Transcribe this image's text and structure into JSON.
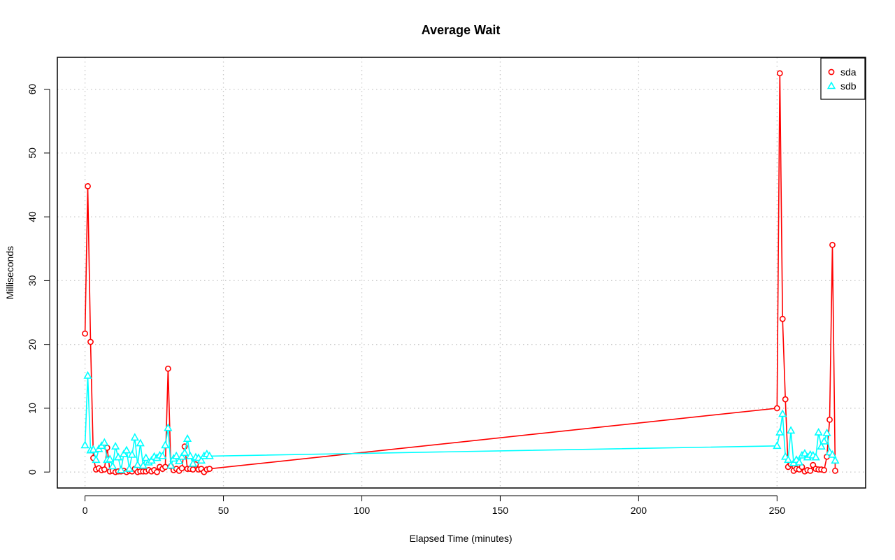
{
  "chart_data": {
    "type": "line",
    "title": "Average Wait",
    "xlabel": "Elapsed Time (minutes)",
    "ylabel": "Milliseconds",
    "xlim": [
      -10,
      282
    ],
    "ylim": [
      -2.5,
      65
    ],
    "xticks": [
      0,
      50,
      100,
      150,
      200,
      250
    ],
    "yticks": [
      0,
      10,
      20,
      30,
      40,
      50,
      60
    ],
    "grid": true,
    "legend_position": "top-right",
    "series": [
      {
        "name": "sda",
        "color": "#ff0000",
        "marker": "circle",
        "x": [
          0,
          1,
          2,
          3,
          4,
          5,
          6,
          7,
          8,
          9,
          10,
          11,
          12,
          13,
          14,
          15,
          16,
          17,
          18,
          19,
          20,
          21,
          22,
          23,
          24,
          25,
          26,
          27,
          28,
          29,
          30,
          31,
          32,
          33,
          34,
          35,
          36,
          37,
          38,
          39,
          40,
          41,
          42,
          43,
          44,
          45,
          250,
          251,
          252,
          253,
          254,
          255,
          256,
          257,
          258,
          259,
          260,
          261,
          262,
          263,
          264,
          265,
          266,
          267,
          268,
          269,
          270,
          271
        ],
        "y": [
          21.7,
          44.8,
          20.4,
          2.2,
          0.4,
          0.6,
          0.3,
          0.4,
          3.8,
          0.1,
          0.2,
          0.0,
          0.1,
          0.1,
          0.2,
          0.0,
          0.2,
          0.1,
          0.5,
          0.0,
          0.1,
          0.1,
          0.1,
          0.3,
          0.1,
          0.3,
          0.0,
          0.8,
          0.5,
          0.8,
          16.2,
          0.9,
          0.3,
          0.5,
          0.2,
          0.6,
          4.0,
          0.5,
          0.5,
          0.4,
          1.2,
          0.4,
          0.5,
          0.0,
          0.4,
          0.5,
          10.0,
          62.5,
          24.0,
          11.4,
          0.8,
          1.2,
          0.2,
          0.5,
          0.4,
          0.8,
          0.1,
          0.3,
          0.2,
          1.1,
          0.5,
          0.4,
          0.4,
          0.3,
          2.4,
          8.2,
          35.6,
          0.2
        ]
      },
      {
        "name": "sdb",
        "color": "#00ffff",
        "marker": "triangle",
        "x": [
          0,
          1,
          2,
          3,
          4,
          5,
          6,
          7,
          8,
          9,
          10,
          11,
          12,
          13,
          14,
          15,
          16,
          17,
          18,
          19,
          20,
          21,
          22,
          23,
          24,
          25,
          26,
          27,
          28,
          29,
          30,
          31,
          32,
          33,
          34,
          35,
          36,
          37,
          38,
          39,
          40,
          41,
          42,
          43,
          44,
          45,
          250,
          251,
          252,
          253,
          254,
          255,
          256,
          257,
          258,
          259,
          260,
          261,
          262,
          263,
          264,
          265,
          266,
          267,
          268,
          269,
          270,
          271
        ],
        "y": [
          4.2,
          15.1,
          3.4,
          3.5,
          1.9,
          3.6,
          4.1,
          4.6,
          1.9,
          2.0,
          0.9,
          4.0,
          2.3,
          0.3,
          2.8,
          3.4,
          0.5,
          2.7,
          5.4,
          1.1,
          4.5,
          1.0,
          2.2,
          1.5,
          1.8,
          2.4,
          2.2,
          2.6,
          2.5,
          4.2,
          6.9,
          1.0,
          2.1,
          2.5,
          1.7,
          2.4,
          3.0,
          5.2,
          2.5,
          1.3,
          2.3,
          2.2,
          1.8,
          2.5,
          2.8,
          2.5,
          4.1,
          6.2,
          9.1,
          2.4,
          1.9,
          6.5,
          1.4,
          1.9,
          1.5,
          2.6,
          2.9,
          2.3,
          2.7,
          2.6,
          2.3,
          6.2,
          4.0,
          4.8,
          6.1,
          3.1,
          2.7,
          1.8
        ]
      }
    ]
  }
}
